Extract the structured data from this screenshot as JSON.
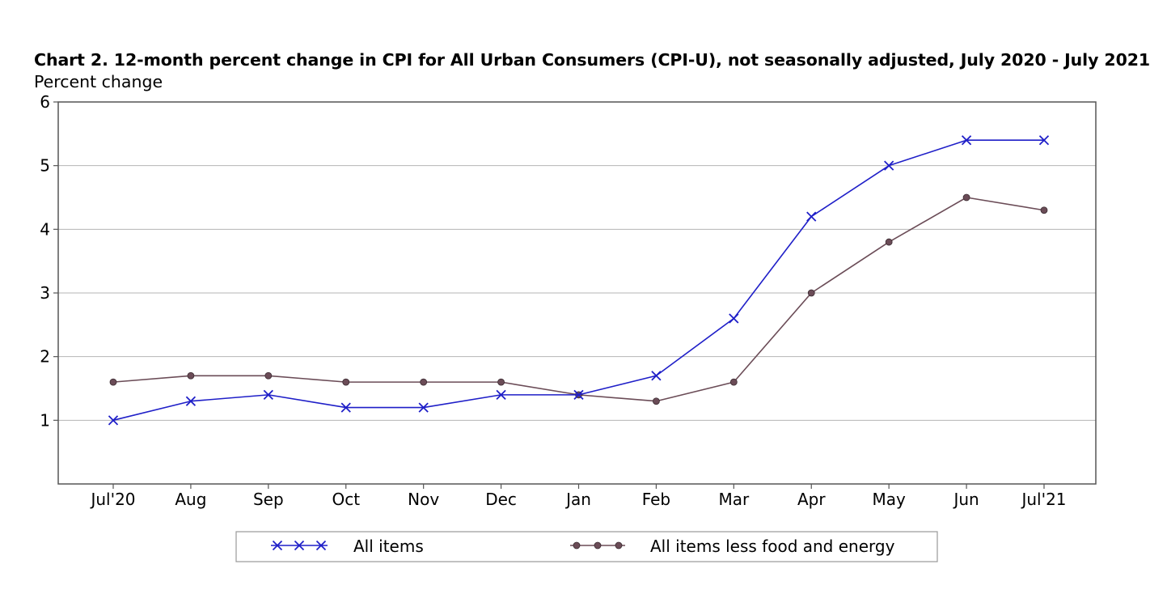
{
  "chart_data": {
    "type": "line",
    "title": "Chart 2. 12-month percent change in CPI for All Urban Consumers (CPI-U), not seasonally adjusted, July 2020 - July 2021",
    "ylabel": "Percent change",
    "xlabel": "",
    "categories": [
      "Jul'20",
      "Aug",
      "Sep",
      "Oct",
      "Nov",
      "Dec",
      "Jan",
      "Feb",
      "Mar",
      "Apr",
      "May",
      "Jun",
      "Jul'21"
    ],
    "ylim": [
      0,
      6
    ],
    "yticks": [
      1,
      2,
      3,
      4,
      5,
      6
    ],
    "grid": true,
    "legend_position": "bottom",
    "series": [
      {
        "name": "All items",
        "color": "#1f1fc8",
        "marker": "x-mark",
        "values": [
          1.0,
          1.3,
          1.4,
          1.2,
          1.2,
          1.4,
          1.4,
          1.7,
          2.6,
          4.2,
          5.0,
          5.4,
          5.4
        ]
      },
      {
        "name": "All items less food and energy",
        "color": "#6b4c57",
        "marker": "dot",
        "values": [
          1.6,
          1.7,
          1.7,
          1.6,
          1.6,
          1.6,
          1.4,
          1.3,
          1.6,
          3.0,
          3.8,
          4.5,
          4.3
        ]
      }
    ]
  }
}
